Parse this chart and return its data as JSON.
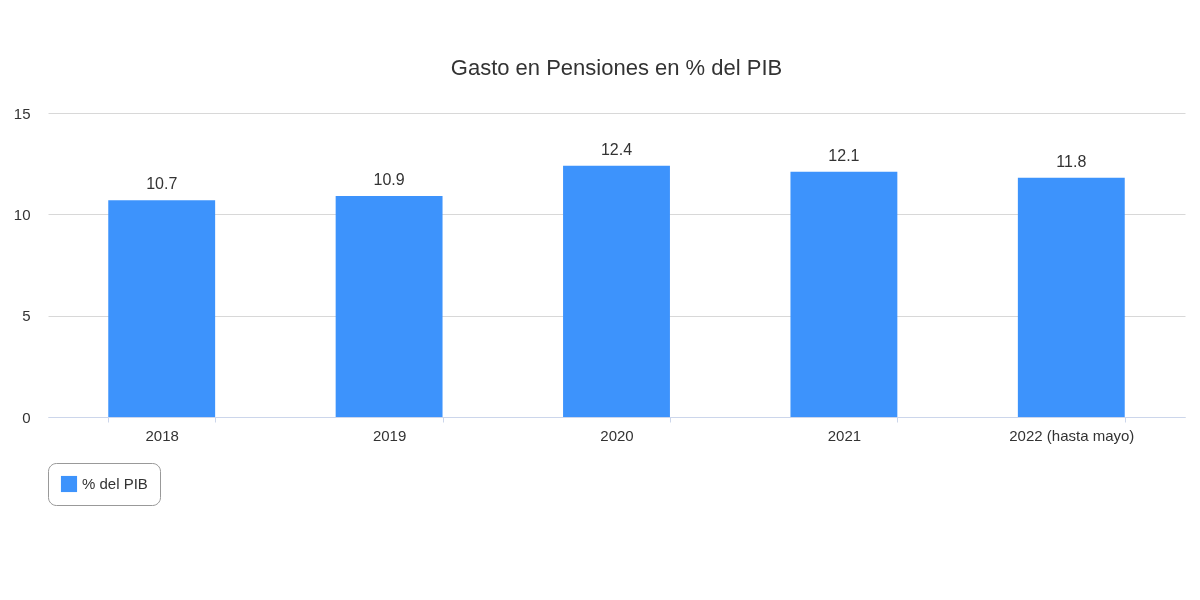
{
  "chart_data": {
    "type": "bar",
    "title": "Gasto en Pensiones en % del PIB",
    "categories": [
      "2018",
      "2019",
      "2020",
      "2021",
      "2022 (hasta mayo)"
    ],
    "series": [
      {
        "name": "% del PIB",
        "color": "#3d93fc",
        "values": [
          10.7,
          10.9,
          12.4,
          12.1,
          11.8
        ]
      }
    ],
    "ylim": [
      0,
      15
    ],
    "yticks": [
      0,
      5,
      10,
      15
    ],
    "grid": "y",
    "legend": "bottom",
    "data_labels": true
  }
}
